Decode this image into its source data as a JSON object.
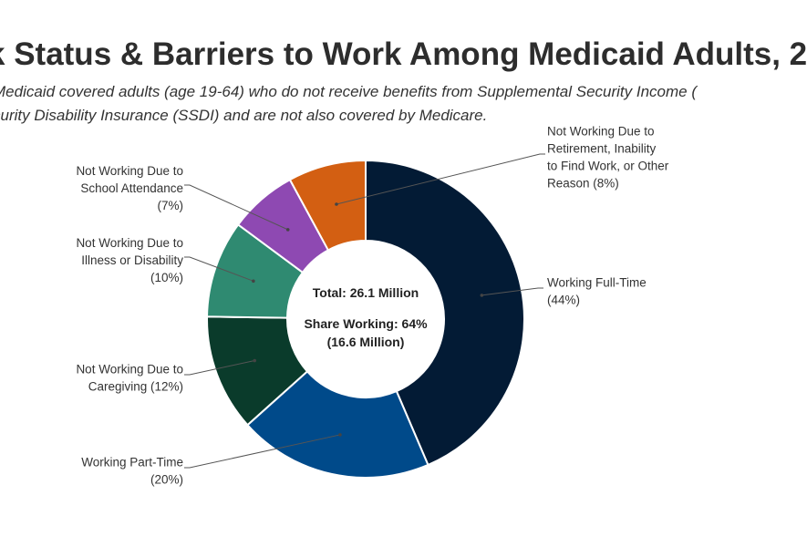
{
  "title": "k Status & Barriers to Work Among Medicaid Adults, 2",
  "subtitle_lines": [
    "Medicaid covered adults (age 19-64) who do not receive benefits from Supplemental Security Income (",
    "curity Disability Insurance (SSDI) and are not also covered by Medicare."
  ],
  "chart_data": {
    "type": "pie",
    "donut": true,
    "title": "k Status & Barriers to Work Among Medicaid Adults, 2",
    "center_text": [
      "Total: 26.1 Million",
      "Share Working: 64%",
      "(16.6 Million)"
    ],
    "slices": [
      {
        "label_lines": [
          "Working Full-Time",
          "(44%)"
        ],
        "value": 44,
        "color": "#031b35"
      },
      {
        "label_lines": [
          "Working Part-Time",
          "(20%)"
        ],
        "value": 20,
        "color": "#004a8a"
      },
      {
        "label_lines": [
          "Not Working Due to",
          "Caregiving (12%)"
        ],
        "value": 12,
        "color": "#0a3b2b"
      },
      {
        "label_lines": [
          "Not Working Due to",
          "Illness or Disability",
          "(10%)"
        ],
        "value": 10,
        "color": "#2f8a71"
      },
      {
        "label_lines": [
          "Not Working Due to",
          "School Attendance",
          "(7%)"
        ],
        "value": 7,
        "color": "#8e49b2"
      },
      {
        "label_lines": [
          "Not Working Due to",
          "Retirement, Inability",
          "to Find Work, or Other",
          "Reason (8%)"
        ],
        "value": 8,
        "color": "#d35f12"
      }
    ]
  }
}
